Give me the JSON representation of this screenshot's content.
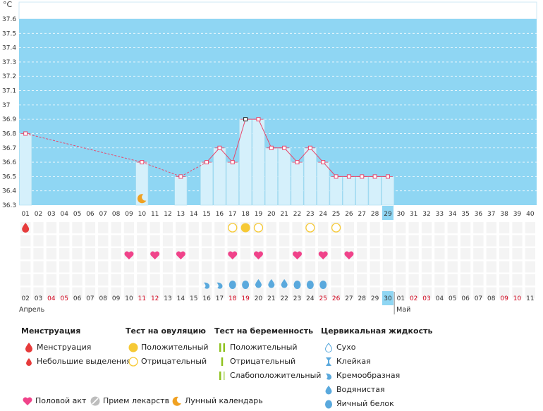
{
  "chart_data": {
    "type": "bar",
    "unit_label": "°C",
    "ylim": [
      36.3,
      37.6
    ],
    "y_ticks": [
      "36.3",
      "36.4",
      "36.5",
      "36.6",
      "36.7",
      "36.8",
      "36.9",
      "37",
      "37.1",
      "37.2",
      "37.3",
      "37.4",
      "37.5",
      "37.6"
    ],
    "top_days": [
      "01",
      "02",
      "03",
      "04",
      "05",
      "06",
      "07",
      "08",
      "09",
      "10",
      "11",
      "12",
      "13",
      "14",
      "15",
      "16",
      "17",
      "18",
      "19",
      "20",
      "21",
      "22",
      "23",
      "24",
      "25",
      "26",
      "27",
      "28",
      "29",
      "30",
      "31",
      "32",
      "33",
      "34",
      "35",
      "36",
      "37",
      "38",
      "39",
      "40"
    ],
    "highlight_day": "29",
    "temperatures": [
      {
        "day": 1,
        "value": 36.8
      },
      {
        "day": 10,
        "value": 36.6
      },
      {
        "day": 13,
        "value": 36.5
      },
      {
        "day": 15,
        "value": 36.6
      },
      {
        "day": 16,
        "value": 36.7
      },
      {
        "day": 17,
        "value": 36.6
      },
      {
        "day": 18,
        "value": 36.9
      },
      {
        "day": 19,
        "value": 36.9
      },
      {
        "day": 20,
        "value": 36.7
      },
      {
        "day": 21,
        "value": 36.7
      },
      {
        "day": 22,
        "value": 36.6
      },
      {
        "day": 23,
        "value": 36.7
      },
      {
        "day": 24,
        "value": 36.6
      },
      {
        "day": 25,
        "value": 36.5
      },
      {
        "day": 26,
        "value": 36.5
      },
      {
        "day": 27,
        "value": 36.5
      },
      {
        "day": 28,
        "value": 36.5
      },
      {
        "day": 29,
        "value": 36.5
      }
    ],
    "dashed_ranges": [
      [
        1,
        10
      ],
      [
        10,
        13
      ]
    ],
    "bottom_dates": [
      {
        "label": "02",
        "red": false
      },
      {
        "label": "03",
        "red": false
      },
      {
        "label": "04",
        "red": true
      },
      {
        "label": "05",
        "red": true
      },
      {
        "label": "06",
        "red": false
      },
      {
        "label": "07",
        "red": false
      },
      {
        "label": "08",
        "red": false
      },
      {
        "label": "09",
        "red": false
      },
      {
        "label": "10",
        "red": false
      },
      {
        "label": "11",
        "red": true
      },
      {
        "label": "12",
        "red": true
      },
      {
        "label": "13",
        "red": false
      },
      {
        "label": "14",
        "red": false
      },
      {
        "label": "15",
        "red": false
      },
      {
        "label": "16",
        "red": false
      },
      {
        "label": "17",
        "red": false
      },
      {
        "label": "18",
        "red": true
      },
      {
        "label": "19",
        "red": true
      },
      {
        "label": "20",
        "red": false
      },
      {
        "label": "21",
        "red": false
      },
      {
        "label": "22",
        "red": false
      },
      {
        "label": "23",
        "red": false
      },
      {
        "label": "24",
        "red": false
      },
      {
        "label": "25",
        "red": true
      },
      {
        "label": "26",
        "red": true
      },
      {
        "label": "27",
        "red": false
      },
      {
        "label": "28",
        "red": false
      },
      {
        "label": "29",
        "red": false
      },
      {
        "label": "30",
        "red": false
      },
      {
        "label": "01",
        "red": false
      },
      {
        "label": "02",
        "red": true
      },
      {
        "label": "03",
        "red": true
      },
      {
        "label": "04",
        "red": false
      },
      {
        "label": "05",
        "red": false
      },
      {
        "label": "06",
        "red": false
      },
      {
        "label": "07",
        "red": false
      },
      {
        "label": "08",
        "red": false
      },
      {
        "label": "09",
        "red": true
      },
      {
        "label": "10",
        "red": true
      },
      {
        "label": "11",
        "red": false
      }
    ],
    "highlight_bottom_index": 28,
    "months": [
      {
        "label": "Апрель",
        "start_index": 0
      },
      {
        "label": "Май",
        "start_index": 29
      }
    ],
    "events": {
      "menstruation": [
        1
      ],
      "moon": [
        10
      ],
      "ovulation_positive": [
        18
      ],
      "ovulation_negative": [
        17,
        19,
        23,
        25
      ],
      "intercourse": [
        9,
        11,
        13,
        17,
        19,
        22,
        24,
        26
      ],
      "fluid_creamy": [
        15,
        16
      ],
      "fluid_watery": [
        19,
        20,
        21
      ],
      "fluid_eggwhite": [
        17,
        18,
        22,
        23,
        24
      ]
    }
  },
  "legend": {
    "menstruation": {
      "title": "Менструация",
      "items": [
        "Менструация",
        "Небольшие выделения"
      ]
    },
    "ovulation_test": {
      "title": "Тест на овуляцию",
      "items": [
        "Положительный",
        "Отрицательный"
      ]
    },
    "pregnancy_test": {
      "title": "Тест на беременность",
      "items": [
        "Положительный",
        "Отрицательный",
        "Слабоположительный"
      ]
    },
    "cervical_fluid": {
      "title": "Цервикальная жидкость",
      "items": [
        "Сухо",
        "Клейкая",
        "Кремообразная",
        "Водянистая",
        "Яичный белок"
      ]
    },
    "bottom": [
      "Половой акт",
      "Прием лекарств",
      "Лунный календарь"
    ]
  },
  "colors": {
    "sky": "#8fd6f3",
    "bar": "#d5f0fb",
    "bar_border": "#a9dcf0",
    "line": "#e8466b",
    "heart": "#f0438a",
    "ovulation": "#f6c935",
    "drop_blue": "#5aa9dd",
    "menstruation": "#e63b3b",
    "moon": "#f0a122",
    "highlight": "#8fd6f3",
    "red_date": "#d0021b",
    "pregnancy_green": "#8fc21f"
  }
}
